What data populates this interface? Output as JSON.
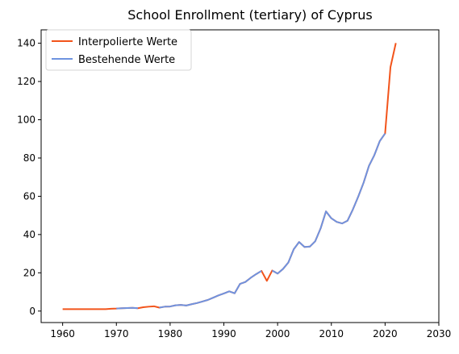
{
  "chart_data": {
    "type": "line",
    "title": "School Enrollment (tertiary) of Cyprus",
    "xlabel": "",
    "ylabel": "",
    "xlim": [
      1956,
      2030
    ],
    "ylim": [
      -6,
      147
    ],
    "xticks": [
      1960,
      1970,
      1980,
      1990,
      2000,
      2010,
      2020,
      2030
    ],
    "yticks": [
      0,
      20,
      40,
      60,
      80,
      100,
      120,
      140
    ],
    "grid": false,
    "legend_position": "top-left",
    "series": [
      {
        "name": "Interpolierte Werte",
        "color": "#f2541b",
        "x": [
          1960,
          1961,
          1962,
          1963,
          1964,
          1965,
          1966,
          1967,
          1968,
          1969,
          1970,
          1971,
          1972,
          1973,
          1974,
          1975,
          1976,
          1977,
          1978,
          1979,
          1980,
          1981,
          1982,
          1983,
          1984,
          1985,
          1986,
          1987,
          1988,
          1989,
          1990,
          1991,
          1992,
          1993,
          1994,
          1995,
          1996,
          1997,
          1998,
          1999,
          2000,
          2001,
          2002,
          2003,
          2004,
          2005,
          2006,
          2007,
          2008,
          2009,
          2010,
          2011,
          2012,
          2013,
          2014,
          2015,
          2016,
          2017,
          2018,
          2019,
          2020,
          2021,
          2022
        ],
        "y": [
          1,
          1,
          1,
          1,
          1,
          1,
          1,
          1,
          1,
          1.2,
          1.3,
          1.5,
          1.6,
          1.7,
          1.5,
          2,
          2.3,
          2.5,
          1.8,
          2.3,
          2.4,
          3,
          3.2,
          2.9,
          3.6,
          4.2,
          5,
          5.8,
          7,
          8.2,
          9.2,
          10.3,
          9.3,
          14.2,
          15.2,
          17.4,
          19.3,
          21,
          15.8,
          21.2,
          19.6,
          22,
          25.4,
          32.3,
          36.1,
          33.5,
          33.7,
          36.5,
          43.2,
          52.1,
          48.5,
          46.6,
          45.8,
          47.2,
          53.1,
          59.8,
          67.1,
          75.9,
          81.5,
          88.8,
          92.8,
          127.5,
          140.1
        ]
      },
      {
        "name": "Bestehende Werte",
        "color": "#6f93e0",
        "x": [
          1970,
          1971,
          1972,
          1973,
          1974,
          1975,
          1976,
          1977,
          1978,
          1979,
          1980,
          1981,
          1982,
          1983,
          1984,
          1985,
          1986,
          1987,
          1988,
          1989,
          1990,
          1991,
          1992,
          1993,
          1994,
          1995,
          1996,
          1997,
          null,
          1999,
          2000,
          2001,
          2002,
          2003,
          2004,
          2005,
          2006,
          2007,
          2008,
          2009,
          2010,
          2011,
          2012,
          2013,
          2014,
          2015,
          2016,
          2017,
          2018,
          2019,
          2020
        ],
        "y": [
          1.3,
          1.5,
          1.6,
          1.7,
          1.5,
          null,
          null,
          null,
          1.8,
          2.3,
          2.4,
          3,
          3.2,
          2.9,
          3.6,
          4.2,
          5,
          5.8,
          7,
          8.2,
          9.2,
          10.3,
          9.3,
          14.2,
          15.2,
          17.4,
          19.3,
          21,
          null,
          21.2,
          19.6,
          22,
          25.4,
          32.3,
          36.1,
          33.5,
          33.7,
          36.5,
          43.2,
          52.1,
          48.5,
          46.6,
          45.8,
          47.2,
          53.1,
          59.8,
          67.1,
          75.9,
          81.5,
          88.8,
          92.8
        ]
      }
    ]
  }
}
